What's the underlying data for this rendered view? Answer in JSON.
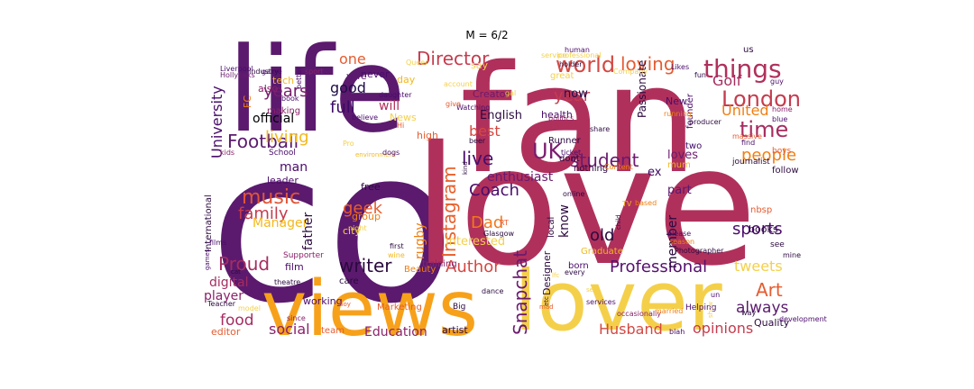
{
  "chart_data": {
    "type": "wordcloud",
    "title": "M = 6/2",
    "palette": "inferno",
    "words": [
      {
        "text": "co",
        "color": "#5b1a6e"
      },
      {
        "text": "love",
        "color": "#b0305c"
      },
      {
        "text": "fan",
        "color": "#b0305c"
      },
      {
        "text": "life",
        "color": "#5b1a6e"
      },
      {
        "text": "views",
        "color": "#f7a11a"
      },
      {
        "text": "lover",
        "color": "#f4d04a"
      },
      {
        "text": "things",
        "color": "#b0305c"
      },
      {
        "text": "London",
        "color": "#c43c4e"
      },
      {
        "text": "time",
        "color": "#a62d60"
      },
      {
        "text": "Football",
        "color": "#5b1a6e"
      },
      {
        "text": "world",
        "color": "#d44842"
      },
      {
        "text": "loving",
        "color": "#e55c30"
      },
      {
        "text": "Director",
        "color": "#c43c4e"
      },
      {
        "text": "UK",
        "color": "#7c1d6f"
      },
      {
        "text": "people",
        "color": "#f07f12"
      },
      {
        "text": "student",
        "color": "#6b1a6e"
      },
      {
        "text": "music",
        "color": "#e05536"
      },
      {
        "text": "Proud",
        "color": "#a52c60"
      },
      {
        "text": "writer",
        "color": "#2b0a3f"
      },
      {
        "text": "Instagram",
        "color": "#e8602c"
      },
      {
        "text": "Snapchat",
        "color": "#6b1a6e"
      },
      {
        "text": "Professional",
        "color": "#57106e"
      },
      {
        "text": "sports",
        "color": "#4a0c6b"
      },
      {
        "text": "Author",
        "color": "#d44842"
      },
      {
        "text": "University",
        "color": "#4a0c6b"
      },
      {
        "text": "years",
        "color": "#7a1d6d"
      },
      {
        "text": "living",
        "color": "#f4b81c"
      },
      {
        "text": "good",
        "color": "#1f0c48"
      },
      {
        "text": "full",
        "color": "#3d0965"
      },
      {
        "text": "live",
        "color": "#4a0c6b"
      },
      {
        "text": "family",
        "color": "#c43c4e"
      },
      {
        "text": "geek",
        "color": "#e65d2f"
      },
      {
        "text": "old",
        "color": "#2b0a3f"
      },
      {
        "text": "Dad",
        "color": "#f37819"
      },
      {
        "text": "Coach",
        "color": "#4a0c6b"
      },
      {
        "text": "Art",
        "color": "#e55c30"
      },
      {
        "text": "always",
        "color": "#5b1a6e"
      },
      {
        "text": "Golf",
        "color": "#a52c60"
      },
      {
        "text": "United",
        "color": "#f07f12"
      },
      {
        "text": "food",
        "color": "#a52c60"
      },
      {
        "text": "social",
        "color": "#8a226a"
      },
      {
        "text": "Education",
        "color": "#8a226a"
      },
      {
        "text": "Husband",
        "color": "#d44842"
      },
      {
        "text": "opinions",
        "color": "#c43c4e"
      },
      {
        "text": "tweets",
        "color": "#f4d04a"
      },
      {
        "text": "digital",
        "color": "#a52c60"
      },
      {
        "text": "player",
        "color": "#8a226a"
      },
      {
        "text": "Manager",
        "color": "#f4b81c"
      },
      {
        "text": "father",
        "color": "#2b0a3f"
      },
      {
        "text": "member",
        "color": "#2b0a3f"
      },
      {
        "text": "enthusiast",
        "color": "#6b1a6e"
      },
      {
        "text": "year",
        "color": "#c43c4e"
      },
      {
        "text": "one",
        "color": "#e55c30"
      },
      {
        "text": "best",
        "color": "#d44842"
      },
      {
        "text": "will",
        "color": "#b0305c"
      },
      {
        "text": "man",
        "color": "#4a0c6b"
      },
      {
        "text": "ex",
        "color": "#3d0965"
      },
      {
        "text": "loves",
        "color": "#6b1a6e"
      },
      {
        "text": "know",
        "color": "#2b0a3f"
      },
      {
        "text": "part",
        "color": "#5b1a6e"
      },
      {
        "text": "rugby",
        "color": "#f07f12"
      },
      {
        "text": "interested",
        "color": "#f4d04a"
      },
      {
        "text": "Passionate",
        "color": "#2b0a3f"
      },
      {
        "text": "English",
        "color": "#2b0a3f"
      },
      {
        "text": "now",
        "color": "#1f0c48"
      },
      {
        "text": "official",
        "color": "#000004"
      },
      {
        "text": "FC",
        "color": "#f07f12"
      },
      {
        "text": "tech",
        "color": "#f4b81c"
      },
      {
        "text": "wife",
        "color": "#5b1a6e"
      },
      {
        "text": "also",
        "color": "#8a226a"
      },
      {
        "text": "never",
        "color": "#4a0c6b"
      },
      {
        "text": "day",
        "color": "#f4b81c"
      },
      {
        "text": "say",
        "color": "#f4d04a"
      },
      {
        "text": "Creator",
        "color": "#6b1a6e"
      },
      {
        "text": "News",
        "color": "#f4d04a"
      },
      {
        "text": "making",
        "color": "#8a226a"
      },
      {
        "text": "Runner",
        "color": "#2b0a3f"
      },
      {
        "text": "health",
        "color": "#4a0c6b"
      },
      {
        "text": "high",
        "color": "#e55c30"
      },
      {
        "text": "great",
        "color": "#f4d04a"
      },
      {
        "text": "New",
        "color": "#4a0c6b"
      },
      {
        "text": "us",
        "color": "#2b0a3f"
      },
      {
        "text": "two",
        "color": "#3d0965"
      },
      {
        "text": "founder",
        "color": "#4a0c6b"
      },
      {
        "text": "dont",
        "color": "#2b0a3f"
      },
      {
        "text": "nothing",
        "color": "#2b0a3f"
      },
      {
        "text": "free",
        "color": "#2b0a3f"
      },
      {
        "text": "group",
        "color": "#f07f12"
      },
      {
        "text": "city",
        "color": "#f4d04a"
      },
      {
        "text": "leader",
        "color": "#4a0c6b"
      },
      {
        "text": "local",
        "color": "#2b0a3f"
      },
      {
        "text": "Graduate",
        "color": "#f4b81c"
      },
      {
        "text": "born",
        "color": "#4a0c6b"
      },
      {
        "text": "Designer",
        "color": "#2b0a3f"
      },
      {
        "text": "Beauty",
        "color": "#f07f12"
      },
      {
        "text": "training",
        "color": "#8a226a"
      },
      {
        "text": "film",
        "color": "#4a0c6b"
      },
      {
        "text": "care",
        "color": "#2b0a3f"
      },
      {
        "text": "editor",
        "color": "#e55c30"
      },
      {
        "text": "team",
        "color": "#e55c30"
      },
      {
        "text": "artist",
        "color": "#2b0a3f"
      },
      {
        "text": "working",
        "color": "#4a0c6b"
      },
      {
        "text": "Marketing",
        "color": "#e55c30"
      },
      {
        "text": "Big",
        "color": "#2b0a3f"
      },
      {
        "text": "Helping",
        "color": "#4a0c6b"
      },
      {
        "text": "Quality",
        "color": "#2b0a3f"
      },
      {
        "text": "books",
        "color": "#2b0a3f"
      },
      {
        "text": "nbsp",
        "color": "#e55c30"
      },
      {
        "text": "follow",
        "color": "#2b0a3f"
      },
      {
        "text": "mum",
        "color": "#f4b81c"
      },
      {
        "text": "see",
        "color": "#2b0a3f"
      },
      {
        "text": "International",
        "color": "#2b0a3f"
      },
      {
        "text": "journalist",
        "color": "#2b0a3f"
      },
      {
        "text": "Supporter",
        "color": "#8a226a"
      },
      {
        "text": "School",
        "color": "#4a0c6b"
      },
      {
        "text": "Liverpool",
        "color": "#4a0c6b"
      },
      {
        "text": "Hollyoaks",
        "color": "#6b1a6e"
      },
      {
        "text": "Industry",
        "color": "#2b0a3f"
      },
      {
        "text": "sport",
        "color": "#8a226a"
      },
      {
        "text": "Queer",
        "color": "#f4d04a"
      },
      {
        "text": "human",
        "color": "#4a0c6b"
      },
      {
        "text": "daughter",
        "color": "#4a0c6b"
      },
      {
        "text": "better",
        "color": "#4a0c6b"
      },
      {
        "text": "Watching",
        "color": "#4a0c6b"
      },
      {
        "text": "politics",
        "color": "#8a226a"
      },
      {
        "text": "holder",
        "color": "#2b0a3f"
      },
      {
        "text": "Likes",
        "color": "#4a0c6b"
      },
      {
        "text": "guy",
        "color": "#4a0c6b"
      },
      {
        "text": "running",
        "color": "#f07f12"
      },
      {
        "text": "producer",
        "color": "#2b0a3f"
      },
      {
        "text": "home",
        "color": "#8a226a"
      },
      {
        "text": "blue",
        "color": "#4a0c6b"
      },
      {
        "text": "share",
        "color": "#2b0a3f"
      },
      {
        "text": "massive",
        "color": "#e55c30"
      },
      {
        "text": "find",
        "color": "#4a0c6b"
      },
      {
        "text": "boys",
        "color": "#e55c30"
      },
      {
        "text": "ticket",
        "color": "#4a0c6b"
      },
      {
        "text": "Content",
        "color": "#f07f12"
      },
      {
        "text": "beer",
        "color": "#2b0a3f"
      },
      {
        "text": "kind",
        "color": "#2b0a3f"
      },
      {
        "text": "Glasgow",
        "color": "#2b0a3f"
      },
      {
        "text": "wine",
        "color": "#f4b81c"
      },
      {
        "text": "first",
        "color": "#2b0a3f"
      },
      {
        "text": "night",
        "color": "#f4d04a"
      },
      {
        "text": "RT",
        "color": "#e55c30"
      },
      {
        "text": "online",
        "color": "#2b0a3f"
      },
      {
        "text": "TV",
        "color": "#f4b81c"
      },
      {
        "text": "based",
        "color": "#f07f12"
      },
      {
        "text": "child",
        "color": "#2b0a3f"
      },
      {
        "text": "please",
        "color": "#4a0c6b"
      },
      {
        "text": "season",
        "color": "#f07f12"
      },
      {
        "text": "Photographer",
        "color": "#2b0a3f"
      },
      {
        "text": "mine",
        "color": "#2b0a3f"
      },
      {
        "text": "every",
        "color": "#2b0a3f"
      },
      {
        "text": "etc",
        "color": "#4a0c6b"
      },
      {
        "text": "mad",
        "color": "#e55c30"
      },
      {
        "text": "services",
        "color": "#4a0c6b"
      },
      {
        "text": "occasionally",
        "color": "#8a226a"
      },
      {
        "text": "married",
        "color": "#f07f12"
      },
      {
        "text": "show",
        "color": "#f4d04a"
      },
      {
        "text": "un",
        "color": "#4a0c6b"
      },
      {
        "text": "way",
        "color": "#2b0a3f"
      },
      {
        "text": "development",
        "color": "#4a0c6b"
      },
      {
        "text": "blah",
        "color": "#4a0c6b"
      },
      {
        "text": "dance",
        "color": "#2b0a3f"
      },
      {
        "text": "boy",
        "color": "#e55c30"
      },
      {
        "text": "since",
        "color": "#8a226a"
      },
      {
        "text": "Teacher",
        "color": "#2b0a3f"
      },
      {
        "text": "model",
        "color": "#f4d04a"
      },
      {
        "text": "theatre",
        "color": "#2b0a3f"
      },
      {
        "text": "games",
        "color": "#4a0c6b"
      },
      {
        "text": "cat",
        "color": "#2b0a3f"
      },
      {
        "text": "films",
        "color": "#4a0c6b"
      },
      {
        "text": "kids",
        "color": "#8a226a"
      },
      {
        "text": "environment",
        "color": "#f4b81c"
      },
      {
        "text": "dogs",
        "color": "#4a0c6b"
      },
      {
        "text": "book",
        "color": "#4a0c6b"
      },
      {
        "text": "game",
        "color": "#4a0c6b"
      },
      {
        "text": "believe",
        "color": "#4a0c6b"
      },
      {
        "text": "Company",
        "color": "#f4d04a"
      },
      {
        "text": "account",
        "color": "#f4d04a"
      },
      {
        "text": "give",
        "color": "#e55c30"
      },
      {
        "text": "Pro",
        "color": "#f4d04a"
      },
      {
        "text": "Hi",
        "color": "#e55c30"
      },
      {
        "text": "professional",
        "color": "#f4d04a"
      },
      {
        "text": "service",
        "color": "#f4d04a"
      },
      {
        "text": "fun",
        "color": "#2b0a3f"
      },
      {
        "text": "gal",
        "color": "#f4d04a"
      },
      {
        "text": "sex",
        "color": "#f4d04a"
      },
      {
        "text": "lfc",
        "color": "#f4d04a"
      },
      {
        "text": "style",
        "color": "#f4d04a"
      },
      {
        "text": "everything",
        "color": "#f4d04a"
      }
    ]
  }
}
